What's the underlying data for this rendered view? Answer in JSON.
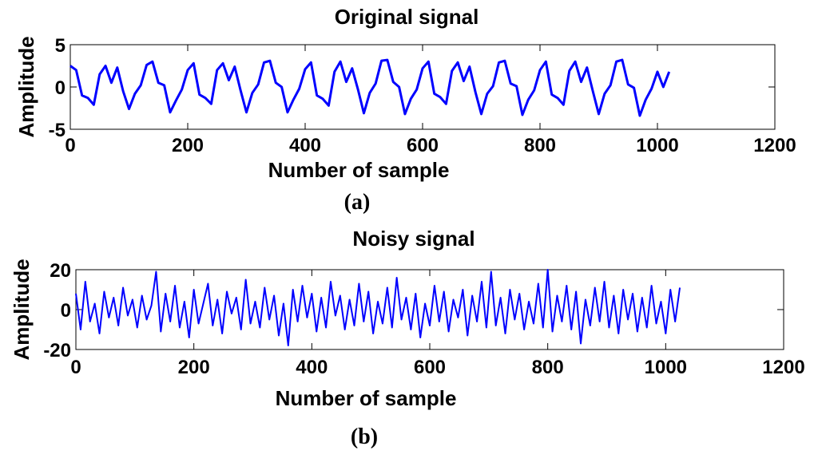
{
  "chart_data": [
    {
      "type": "line",
      "title": "Original signal",
      "xlabel": "Number of sample",
      "ylabel": "Amplitude",
      "caption": "(a)",
      "xlim": [
        0,
        1200
      ],
      "ylim": [
        -5,
        5
      ],
      "xticks": [
        "0",
        "200",
        "400",
        "600",
        "800",
        "1000",
        "1200"
      ],
      "yticks": [
        "5",
        "0",
        "-5"
      ],
      "grid": false,
      "series": [
        {
          "color": "#0000ff",
          "x": [
            0,
            10,
            20,
            30,
            40,
            50,
            60,
            70,
            80,
            90,
            100,
            110,
            120,
            130,
            140,
            150,
            160,
            170,
            180,
            190,
            200,
            210,
            220,
            230,
            240,
            250,
            260,
            270,
            280,
            290,
            300,
            310,
            320,
            330,
            340,
            350,
            360,
            370,
            380,
            390,
            400,
            410,
            420,
            430,
            440,
            450,
            460,
            470,
            480,
            490,
            500,
            510,
            520,
            530,
            540,
            550,
            560,
            570,
            580,
            590,
            600,
            610,
            620,
            630,
            640,
            650,
            660,
            670,
            680,
            690,
            700,
            710,
            720,
            730,
            740,
            750,
            760,
            770,
            780,
            790,
            800,
            810,
            820,
            830,
            840,
            850,
            860,
            870,
            880,
            890,
            900,
            910,
            920,
            930,
            940,
            950,
            960,
            970,
            980,
            990,
            1000,
            1010,
            1020
          ],
          "y": [
            2.5,
            2.0,
            -1.0,
            -1.3,
            -2.1,
            1.5,
            2.5,
            0.5,
            2.3,
            -0.5,
            -2.6,
            -0.8,
            0.2,
            2.6,
            3.0,
            0.5,
            0.2,
            -3.0,
            -1.6,
            -0.3,
            2.0,
            2.8,
            -0.9,
            -1.3,
            -2.0,
            2.0,
            2.8,
            0.8,
            2.4,
            -0.4,
            -3.0,
            -0.7,
            0.3,
            2.9,
            3.1,
            0.5,
            0.0,
            -3.0,
            -1.5,
            -0.2,
            2.1,
            2.9,
            -1.0,
            -1.4,
            -2.2,
            1.8,
            3.0,
            0.6,
            2.2,
            -0.3,
            -3.1,
            -0.7,
            0.4,
            3.1,
            3.2,
            0.6,
            0.0,
            -3.2,
            -1.4,
            -0.3,
            2.2,
            3.0,
            -0.8,
            -1.2,
            -2.0,
            1.9,
            2.9,
            0.7,
            2.4,
            -0.6,
            -3.2,
            -0.8,
            0.1,
            2.9,
            3.1,
            0.4,
            0.1,
            -3.3,
            -1.5,
            -0.4,
            2.0,
            3.0,
            -0.9,
            -1.3,
            -2.1,
            1.9,
            3.0,
            0.6,
            2.3,
            -0.5,
            -3.2,
            -0.8,
            0.2,
            3.0,
            3.2,
            0.3,
            -0.1,
            -3.4,
            -1.5,
            -0.2,
            1.8,
            0.0,
            1.8
          ]
        }
      ]
    },
    {
      "type": "line",
      "title": "Noisy signal",
      "xlabel": "Number of sample",
      "ylabel": "Amplitude",
      "caption": "(b)",
      "xlim": [
        0,
        1200
      ],
      "ylim": [
        -20,
        20
      ],
      "xticks": [
        "0",
        "200",
        "400",
        "600",
        "800",
        "1000",
        "1200"
      ],
      "yticks": [
        "20",
        "0",
        "-20"
      ],
      "grid": false,
      "series": [
        {
          "color": "#0000ff",
          "x": [
            0,
            8,
            16,
            24,
            32,
            40,
            48,
            56,
            64,
            72,
            80,
            88,
            96,
            104,
            112,
            120,
            128,
            136,
            144,
            152,
            160,
            168,
            176,
            184,
            192,
            200,
            208,
            216,
            224,
            232,
            240,
            248,
            256,
            264,
            272,
            280,
            288,
            296,
            304,
            312,
            320,
            328,
            336,
            344,
            352,
            360,
            368,
            376,
            384,
            392,
            400,
            408,
            416,
            424,
            432,
            440,
            448,
            456,
            464,
            472,
            480,
            488,
            496,
            504,
            512,
            520,
            528,
            536,
            544,
            552,
            560,
            568,
            576,
            584,
            592,
            600,
            608,
            616,
            624,
            632,
            640,
            648,
            656,
            664,
            672,
            680,
            688,
            696,
            704,
            712,
            720,
            728,
            736,
            744,
            752,
            760,
            768,
            776,
            784,
            792,
            800,
            808,
            816,
            824,
            832,
            840,
            848,
            856,
            864,
            872,
            880,
            888,
            896,
            904,
            912,
            920,
            928,
            936,
            944,
            952,
            960,
            968,
            976,
            984,
            992,
            1000,
            1008,
            1016,
            1024
          ],
          "y": [
            8,
            -10,
            14,
            -6,
            3,
            -12,
            9,
            -4,
            6,
            -8,
            11,
            -3,
            5,
            -9,
            7,
            -5,
            2,
            19,
            -11,
            8,
            -6,
            12,
            -9,
            4,
            -14,
            10,
            -7,
            3,
            13,
            -8,
            5,
            -12,
            9,
            -2,
            6,
            -10,
            15,
            -7,
            4,
            -9,
            11,
            -5,
            7,
            -13,
            3,
            -18,
            10,
            -6,
            12,
            -4,
            8,
            -11,
            6,
            -9,
            14,
            -3,
            7,
            -10,
            5,
            -8,
            13,
            -6,
            9,
            -12,
            4,
            -7,
            11,
            -9,
            16,
            -5,
            6,
            -10,
            8,
            -14,
            3,
            -8,
            12,
            -6,
            9,
            -11,
            5,
            -4,
            10,
            -13,
            7,
            -6,
            14,
            -9,
            19,
            -8,
            6,
            -12,
            10,
            -5,
            8,
            -10,
            4,
            -7,
            13,
            -9,
            20,
            -11,
            7,
            -6,
            12,
            -10,
            9,
            -17,
            5,
            -8,
            11,
            -6,
            14,
            -9,
            7,
            -12,
            10,
            -5,
            8,
            -11,
            6,
            -9,
            12,
            -7,
            4,
            -12,
            10,
            -6,
            11
          ]
        }
      ]
    }
  ]
}
